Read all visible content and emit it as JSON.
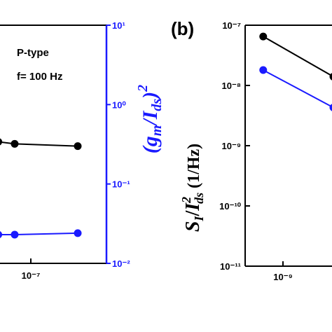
{
  "chart_data": [
    {
      "type": "line",
      "panel_label": "",
      "annotations": [
        "P-type",
        "f= 100 Hz"
      ],
      "xscale": "log",
      "x_ticks": [
        {
          "value": 1e-07,
          "label": "10⁻⁷"
        }
      ],
      "y_right": {
        "label": "(g_m / I_ds)²",
        "scale": "log",
        "lim": [
          0.01,
          10
        ],
        "ticks": [
          {
            "value": 10,
            "label": "10¹"
          },
          {
            "value": 1,
            "label": "10⁰"
          },
          {
            "value": 0.1,
            "label": "10⁻¹"
          },
          {
            "value": 0.01,
            "label": "10⁻²"
          }
        ],
        "color": "#1a1aff"
      },
      "series": [
        {
          "color": "#000000",
          "x": [
            4.2e-08,
            6.5e-08,
            3.5e-07
          ],
          "y": [
            0.34,
            0.32,
            0.3
          ]
        },
        {
          "color": "#1a1aff",
          "x": [
            4.2e-08,
            6.5e-08,
            3.5e-07
          ],
          "y": [
            0.023,
            0.023,
            0.024
          ]
        }
      ]
    },
    {
      "type": "line",
      "panel_label": "(b)",
      "xscale": "log",
      "x_ticks": [
        {
          "value": 1e-09,
          "label": "10⁻⁹"
        }
      ],
      "y": {
        "label": "S_I / I²_ds (1/Hz)",
        "scale": "log",
        "lim": [
          1e-11,
          1e-07
        ],
        "ticks": [
          {
            "value": 1e-07,
            "label": "10⁻⁷"
          },
          {
            "value": 1e-08,
            "label": "10⁻⁸"
          },
          {
            "value": 1e-09,
            "label": "10⁻⁹"
          },
          {
            "value": 1e-10,
            "label": "10⁻¹⁰"
          },
          {
            "value": 1e-11,
            "label": "10⁻¹¹"
          }
        ]
      },
      "series": [
        {
          "color": "#000000",
          "x": [
            6.5e-10,
            3e-09
          ],
          "y": [
            6.5e-08,
            1.4e-08
          ]
        },
        {
          "color": "#1a1aff",
          "x": [
            6.5e-10,
            3e-09
          ],
          "y": [
            1.8e-08,
            4.3e-09
          ]
        }
      ]
    }
  ]
}
